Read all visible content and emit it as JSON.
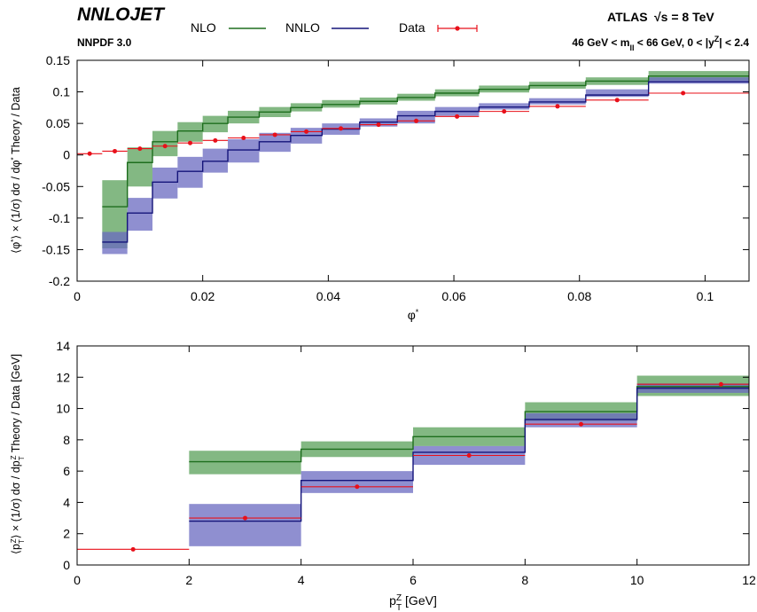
{
  "header": {
    "brand": "NNLOJET",
    "pdf": "NNPDF 3.0",
    "experiment": "ATLAS",
    "energy_label": "√s = 8 TeV",
    "cuts_label": "46 GeV < m_ll < 66 GeV,  0 < |y^Z| < 2.4"
  },
  "legend": {
    "nlo": "NLO",
    "nnlo": "NNLO",
    "data": "Data",
    "placement": "top"
  },
  "colors": {
    "nlo_line": "#1e6e1e",
    "nlo_band": "#5aa05a",
    "nnlo_line": "#14147a",
    "nnlo_band": "#6a6ac0",
    "data": "#e8101a"
  },
  "chart_data": [
    {
      "type": "line",
      "name": "top",
      "xlabel": "φ*",
      "ylabel": "⟨φ*⟩  ×  (1/σ) dσ / dφ*   Theory / Data",
      "xlim": [
        0,
        0.107
      ],
      "ylim": [
        -0.2,
        0.15
      ],
      "xticks": [
        0,
        0.02,
        0.04,
        0.06,
        0.08,
        0.1
      ],
      "xtick_labels": [
        "0",
        "0.02",
        "0.04",
        "0.06",
        "0.08",
        "0.1"
      ],
      "yticks": [
        -0.2,
        -0.15,
        -0.1,
        -0.05,
        0,
        0.05,
        0.1,
        0.15
      ],
      "ytick_labels": [
        "-0.2",
        "-0.15",
        "-0.1",
        "-0.05",
        "0",
        "0.05",
        "0.1",
        "0.15"
      ],
      "bin_edges": [
        0.004,
        0.008,
        0.012,
        0.016,
        0.02,
        0.024,
        0.029,
        0.034,
        0.039,
        0.045,
        0.051,
        0.057,
        0.064,
        0.072,
        0.081,
        0.091,
        0.107
      ],
      "series": [
        {
          "name": "NLO",
          "kind": "band",
          "center": [
            -0.082,
            -0.012,
            0.021,
            0.038,
            0.05,
            0.06,
            0.068,
            0.075,
            0.08,
            0.085,
            0.091,
            0.098,
            0.104,
            0.11,
            0.117,
            0.125
          ],
          "low": [
            -0.148,
            -0.05,
            -0.002,
            0.021,
            0.036,
            0.05,
            0.06,
            0.069,
            0.075,
            0.08,
            0.086,
            0.093,
            0.099,
            0.105,
            0.111,
            0.118
          ],
          "high": [
            -0.04,
            0.012,
            0.038,
            0.052,
            0.062,
            0.07,
            0.076,
            0.082,
            0.087,
            0.091,
            0.097,
            0.104,
            0.11,
            0.116,
            0.123,
            0.133
          ]
        },
        {
          "name": "NNLO",
          "kind": "band",
          "center": [
            -0.138,
            -0.092,
            -0.043,
            -0.026,
            -0.01,
            0.008,
            0.021,
            0.031,
            0.041,
            0.052,
            0.062,
            0.069,
            0.076,
            0.084,
            0.095,
            0.116
          ],
          "low": [
            -0.157,
            -0.12,
            -0.069,
            -0.052,
            -0.028,
            -0.012,
            0.005,
            0.018,
            0.032,
            0.045,
            0.05,
            0.062,
            0.072,
            0.08,
            0.092,
            0.113
          ],
          "high": [
            -0.122,
            -0.068,
            -0.02,
            -0.003,
            0.01,
            0.025,
            0.035,
            0.043,
            0.05,
            0.058,
            0.07,
            0.076,
            0.082,
            0.09,
            0.104,
            0.123
          ]
        },
        {
          "name": "Data",
          "kind": "points",
          "x": [
            0.002,
            0.006,
            0.01,
            0.014,
            0.018,
            0.022,
            0.0265,
            0.0315,
            0.0365,
            0.042,
            0.048,
            0.054,
            0.0605,
            0.068,
            0.0765,
            0.086,
            0.0965
          ],
          "xlo": [
            0.0,
            0.004,
            0.008,
            0.012,
            0.016,
            0.02,
            0.024,
            0.029,
            0.034,
            0.039,
            0.045,
            0.051,
            0.057,
            0.064,
            0.072,
            0.081,
            0.091
          ],
          "xhi": [
            0.004,
            0.008,
            0.012,
            0.016,
            0.02,
            0.024,
            0.029,
            0.034,
            0.039,
            0.045,
            0.051,
            0.057,
            0.064,
            0.072,
            0.081,
            0.091,
            0.107
          ],
          "y": [
            0.002,
            0.006,
            0.01,
            0.014,
            0.019,
            0.023,
            0.027,
            0.032,
            0.037,
            0.042,
            0.048,
            0.054,
            0.061,
            0.069,
            0.077,
            0.087,
            0.098
          ]
        }
      ]
    },
    {
      "type": "line",
      "name": "bottom",
      "xlabel": "p_T^Z [GeV]",
      "ylabel": "⟨p_T^Z⟩  ×  (1/σ) dσ / dp_T^Z   Theory / Data   [GeV]",
      "xlim": [
        0,
        12
      ],
      "ylim": [
        0,
        14
      ],
      "xticks": [
        0,
        2,
        4,
        6,
        8,
        10,
        12
      ],
      "xtick_labels": [
        "0",
        "2",
        "4",
        "6",
        "8",
        "10",
        "12"
      ],
      "yticks": [
        0,
        2,
        4,
        6,
        8,
        10,
        12,
        14
      ],
      "ytick_labels": [
        "0",
        "2",
        "4",
        "6",
        "8",
        "10",
        "12",
        "14"
      ],
      "bin_edges": [
        2,
        4,
        6,
        8,
        10,
        12
      ],
      "series": [
        {
          "name": "NLO",
          "kind": "band",
          "center": [
            6.6,
            7.4,
            8.2,
            9.8,
            11.4
          ],
          "low": [
            5.8,
            6.9,
            7.6,
            9.2,
            10.8
          ],
          "high": [
            7.3,
            7.9,
            8.8,
            10.4,
            12.1
          ]
        },
        {
          "name": "NNLO",
          "kind": "band",
          "center": [
            2.8,
            5.4,
            7.2,
            9.3,
            11.3
          ],
          "low": [
            1.2,
            4.6,
            6.4,
            8.8,
            11.0
          ],
          "high": [
            3.9,
            6.0,
            7.6,
            9.7,
            11.6
          ]
        },
        {
          "name": "Data",
          "kind": "points",
          "x": [
            1,
            3,
            5,
            7,
            9,
            11.5
          ],
          "xlo": [
            0,
            2,
            4,
            6,
            8,
            10
          ],
          "xhi": [
            2,
            4,
            6,
            8,
            10,
            12
          ],
          "y": [
            1.0,
            3.0,
            5.0,
            7.0,
            9.0,
            11.55
          ]
        }
      ]
    }
  ]
}
